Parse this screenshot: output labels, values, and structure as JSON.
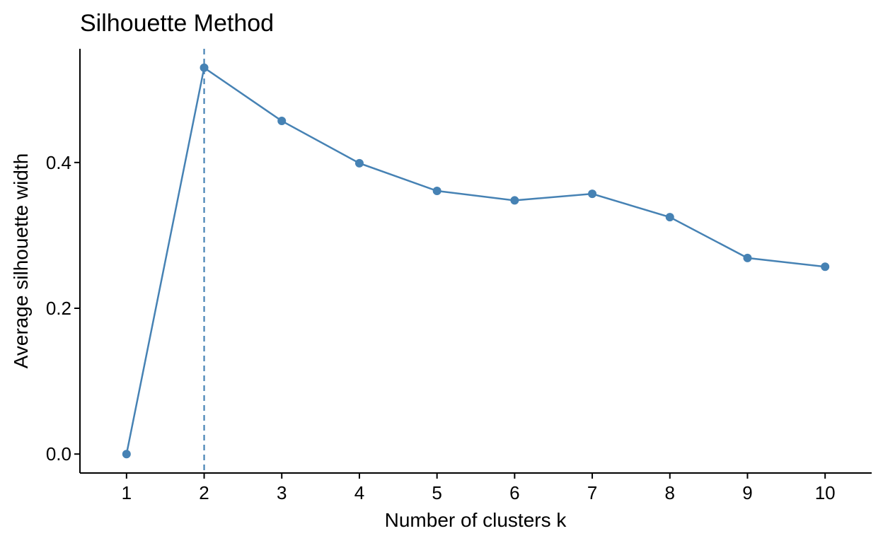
{
  "chart_data": {
    "type": "line",
    "title": "Silhouette Method",
    "xlabel": "Number of clusters k",
    "ylabel": "Average silhouette width",
    "x": [
      1,
      2,
      3,
      4,
      5,
      6,
      7,
      8,
      9,
      10
    ],
    "x_tick_labels": [
      "1",
      "2",
      "3",
      "4",
      "5",
      "6",
      "7",
      "8",
      "9",
      "10"
    ],
    "y_tick_values": [
      0.0,
      0.2,
      0.4
    ],
    "y_tick_labels": [
      "0.0",
      "0.2",
      "0.4"
    ],
    "xlim": [
      0.4,
      10.6
    ],
    "ylim": [
      -0.026,
      0.556
    ],
    "series": [
      {
        "values": [
          0.0,
          0.53,
          0.457,
          0.399,
          0.361,
          0.348,
          0.357,
          0.325,
          0.269,
          0.257
        ],
        "color": "#4682B4"
      }
    ],
    "reference_line": {
      "x": 2,
      "style": "dashed",
      "color": "#4682B4"
    },
    "grid": false,
    "legend": "none"
  }
}
